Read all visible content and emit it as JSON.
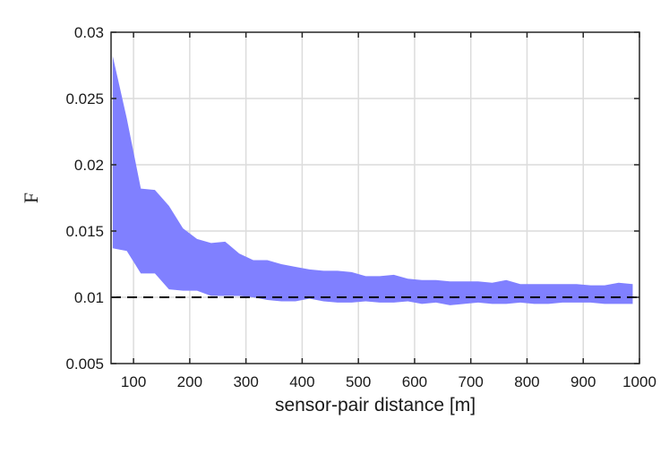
{
  "chart_data": {
    "type": "area",
    "xlabel": "sensor-pair distance [m]",
    "ylabel": "F",
    "xlim": [
      60,
      1000
    ],
    "ylim": [
      0.005,
      0.03
    ],
    "grid": true,
    "x_ticks": [
      100,
      200,
      300,
      400,
      500,
      600,
      700,
      800,
      900,
      1000
    ],
    "y_ticks": [
      0.005,
      0.01,
      0.015,
      0.02,
      0.025,
      0.03
    ],
    "x_tick_labels": [
      "100",
      "200",
      "300",
      "400",
      "500",
      "600",
      "700",
      "800",
      "900",
      "1000"
    ],
    "y_tick_labels": [
      "0.005",
      "0.01",
      "0.015",
      "0.02",
      "0.025",
      "0.03"
    ],
    "band_color": "#8080ff",
    "reference_line": {
      "y": 0.01,
      "style": "dashed",
      "color": "#000000"
    },
    "band": {
      "x": [
        63,
        88,
        113,
        138,
        163,
        188,
        213,
        238,
        263,
        288,
        313,
        338,
        363,
        388,
        413,
        438,
        463,
        488,
        513,
        538,
        563,
        588,
        613,
        638,
        663,
        688,
        713,
        738,
        763,
        788,
        813,
        838,
        863,
        888,
        913,
        938,
        963,
        988
      ],
      "upper": [
        0.0282,
        0.0235,
        0.0182,
        0.0181,
        0.0169,
        0.0152,
        0.0144,
        0.0141,
        0.0142,
        0.0133,
        0.0128,
        0.0128,
        0.0125,
        0.0123,
        0.0121,
        0.012,
        0.012,
        0.0119,
        0.0116,
        0.0116,
        0.0117,
        0.0114,
        0.0113,
        0.0113,
        0.0112,
        0.0112,
        0.0112,
        0.0111,
        0.0113,
        0.011,
        0.011,
        0.011,
        0.011,
        0.011,
        0.0109,
        0.0109,
        0.0111,
        0.011
      ],
      "lower": [
        0.0137,
        0.0135,
        0.0118,
        0.0118,
        0.0106,
        0.0105,
        0.0105,
        0.0101,
        0.0101,
        0.0101,
        0.01,
        0.0098,
        0.0097,
        0.0097,
        0.0099,
        0.0097,
        0.0096,
        0.0096,
        0.0097,
        0.0096,
        0.0096,
        0.0097,
        0.0095,
        0.0096,
        0.0094,
        0.0095,
        0.0096,
        0.0095,
        0.0095,
        0.0096,
        0.0095,
        0.0095,
        0.0096,
        0.0096,
        0.0096,
        0.0095,
        0.0095,
        0.0095
      ]
    }
  }
}
